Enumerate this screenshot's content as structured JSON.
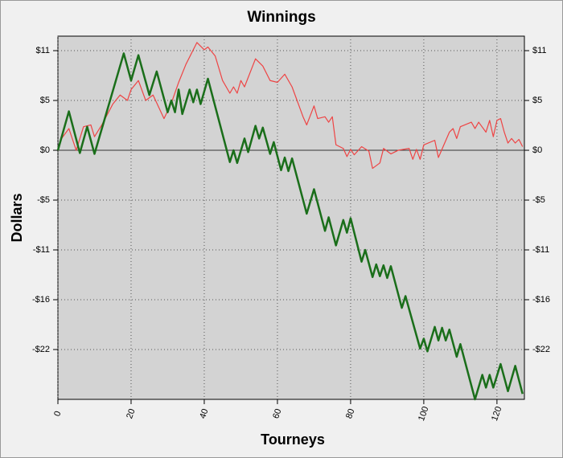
{
  "chart_data": {
    "type": "line",
    "title": "Winnings",
    "x_label": "Tourneys",
    "y_label": "Dollars",
    "xlim": [
      0,
      127.5
    ],
    "ylim": [
      -27.5,
      12.6
    ],
    "xticks": [
      0,
      20,
      40,
      60,
      80,
      100,
      120
    ],
    "yticks": [
      {
        "value": 11,
        "label": "$11"
      },
      {
        "value": 5.5,
        "label": "$5"
      },
      {
        "value": 0,
        "label": "$0"
      },
      {
        "value": -5.5,
        "label": "-$5"
      },
      {
        "value": -11,
        "label": "-$11"
      },
      {
        "value": -16.5,
        "label": "-$16"
      },
      {
        "value": -22,
        "label": "-$22"
      }
    ],
    "grid": true,
    "series": [
      {
        "color": "#ee4444",
        "x": [
          0,
          1,
          3,
          5,
          7,
          9,
          10,
          12,
          15,
          17,
          19,
          20,
          22,
          24,
          26,
          29,
          31,
          33,
          35,
          38,
          40,
          41,
          43,
          45,
          47,
          48,
          49,
          50,
          51,
          54,
          56,
          58,
          60,
          62,
          64,
          67,
          68,
          70,
          71,
          73,
          74,
          75,
          76,
          78,
          79,
          80,
          81,
          83,
          85,
          86,
          88,
          89,
          91,
          93,
          96,
          97,
          98,
          99,
          100,
          103,
          104,
          107,
          108,
          109,
          110,
          113,
          114,
          115,
          117,
          118,
          119,
          120,
          121,
          122,
          123,
          124,
          125,
          126,
          127
        ],
        "values": [
          0,
          1.3,
          2.4,
          0,
          2.6,
          2.8,
          1.5,
          2.8,
          5.1,
          6.1,
          5.5,
          6.7,
          7.7,
          5.5,
          6.1,
          3.5,
          5.2,
          7.5,
          9.5,
          11.9,
          11.1,
          11.4,
          10.4,
          7.7,
          6.3,
          7,
          6.3,
          7.7,
          7,
          10.1,
          9.3,
          7.7,
          7.5,
          8.4,
          7,
          3.7,
          2.8,
          4.9,
          3.5,
          3.7,
          3.1,
          3.7,
          0.6,
          0.2,
          -0.7,
          0.1,
          -0.5,
          0.4,
          -0.1,
          -2,
          -1.4,
          0.2,
          -0.4,
          0,
          0.2,
          -1,
          0.1,
          -1,
          0.6,
          1.1,
          -0.8,
          2,
          2.4,
          1.3,
          2.6,
          3.1,
          2.4,
          3.1,
          2,
          3.3,
          1.5,
          3.3,
          3.5,
          2,
          0.8,
          1.3,
          0.8,
          1.2,
          0.4
        ]
      },
      {
        "color": "#1a6e1a",
        "x": [
          0,
          3,
          6,
          8,
          10,
          18,
          20,
          22,
          25,
          27,
          30,
          31,
          32,
          33,
          34,
          36,
          37,
          38,
          39,
          41,
          47,
          48,
          49,
          51,
          52,
          54,
          55,
          56,
          58,
          59,
          61,
          62,
          63,
          64,
          68,
          70,
          73,
          74,
          76,
          78,
          79,
          80,
          83,
          84,
          86,
          87,
          88,
          89,
          90,
          91,
          94,
          95,
          99,
          100,
          101,
          103,
          104,
          105,
          106,
          107,
          109,
          110,
          114,
          116,
          117,
          118,
          119,
          121,
          123,
          125,
          127
        ],
        "values": [
          0,
          4.3,
          -0.3,
          2.6,
          -0.4,
          10.7,
          7.7,
          10.5,
          6.1,
          8.7,
          4.2,
          5.5,
          4.2,
          6.7,
          4,
          6.7,
          5.3,
          6.7,
          5.1,
          7.9,
          -1.3,
          0,
          -1.4,
          1.3,
          -0.2,
          2.7,
          1.3,
          2.5,
          -0.4,
          0.9,
          -2.2,
          -0.8,
          -2.3,
          -0.9,
          -7,
          -4.3,
          -8.9,
          -7.4,
          -10.5,
          -7.7,
          -9.1,
          -7.5,
          -12.3,
          -11,
          -14,
          -12.6,
          -13.9,
          -12.7,
          -14.1,
          -12.8,
          -17.4,
          -16.1,
          -21.9,
          -20.8,
          -22.2,
          -19.5,
          -21,
          -19.6,
          -21,
          -19.8,
          -22.8,
          -21.4,
          -27.5,
          -24.8,
          -26.2,
          -24.8,
          -26.2,
          -23.6,
          -26.6,
          -23.8,
          -26.9
        ]
      }
    ]
  }
}
